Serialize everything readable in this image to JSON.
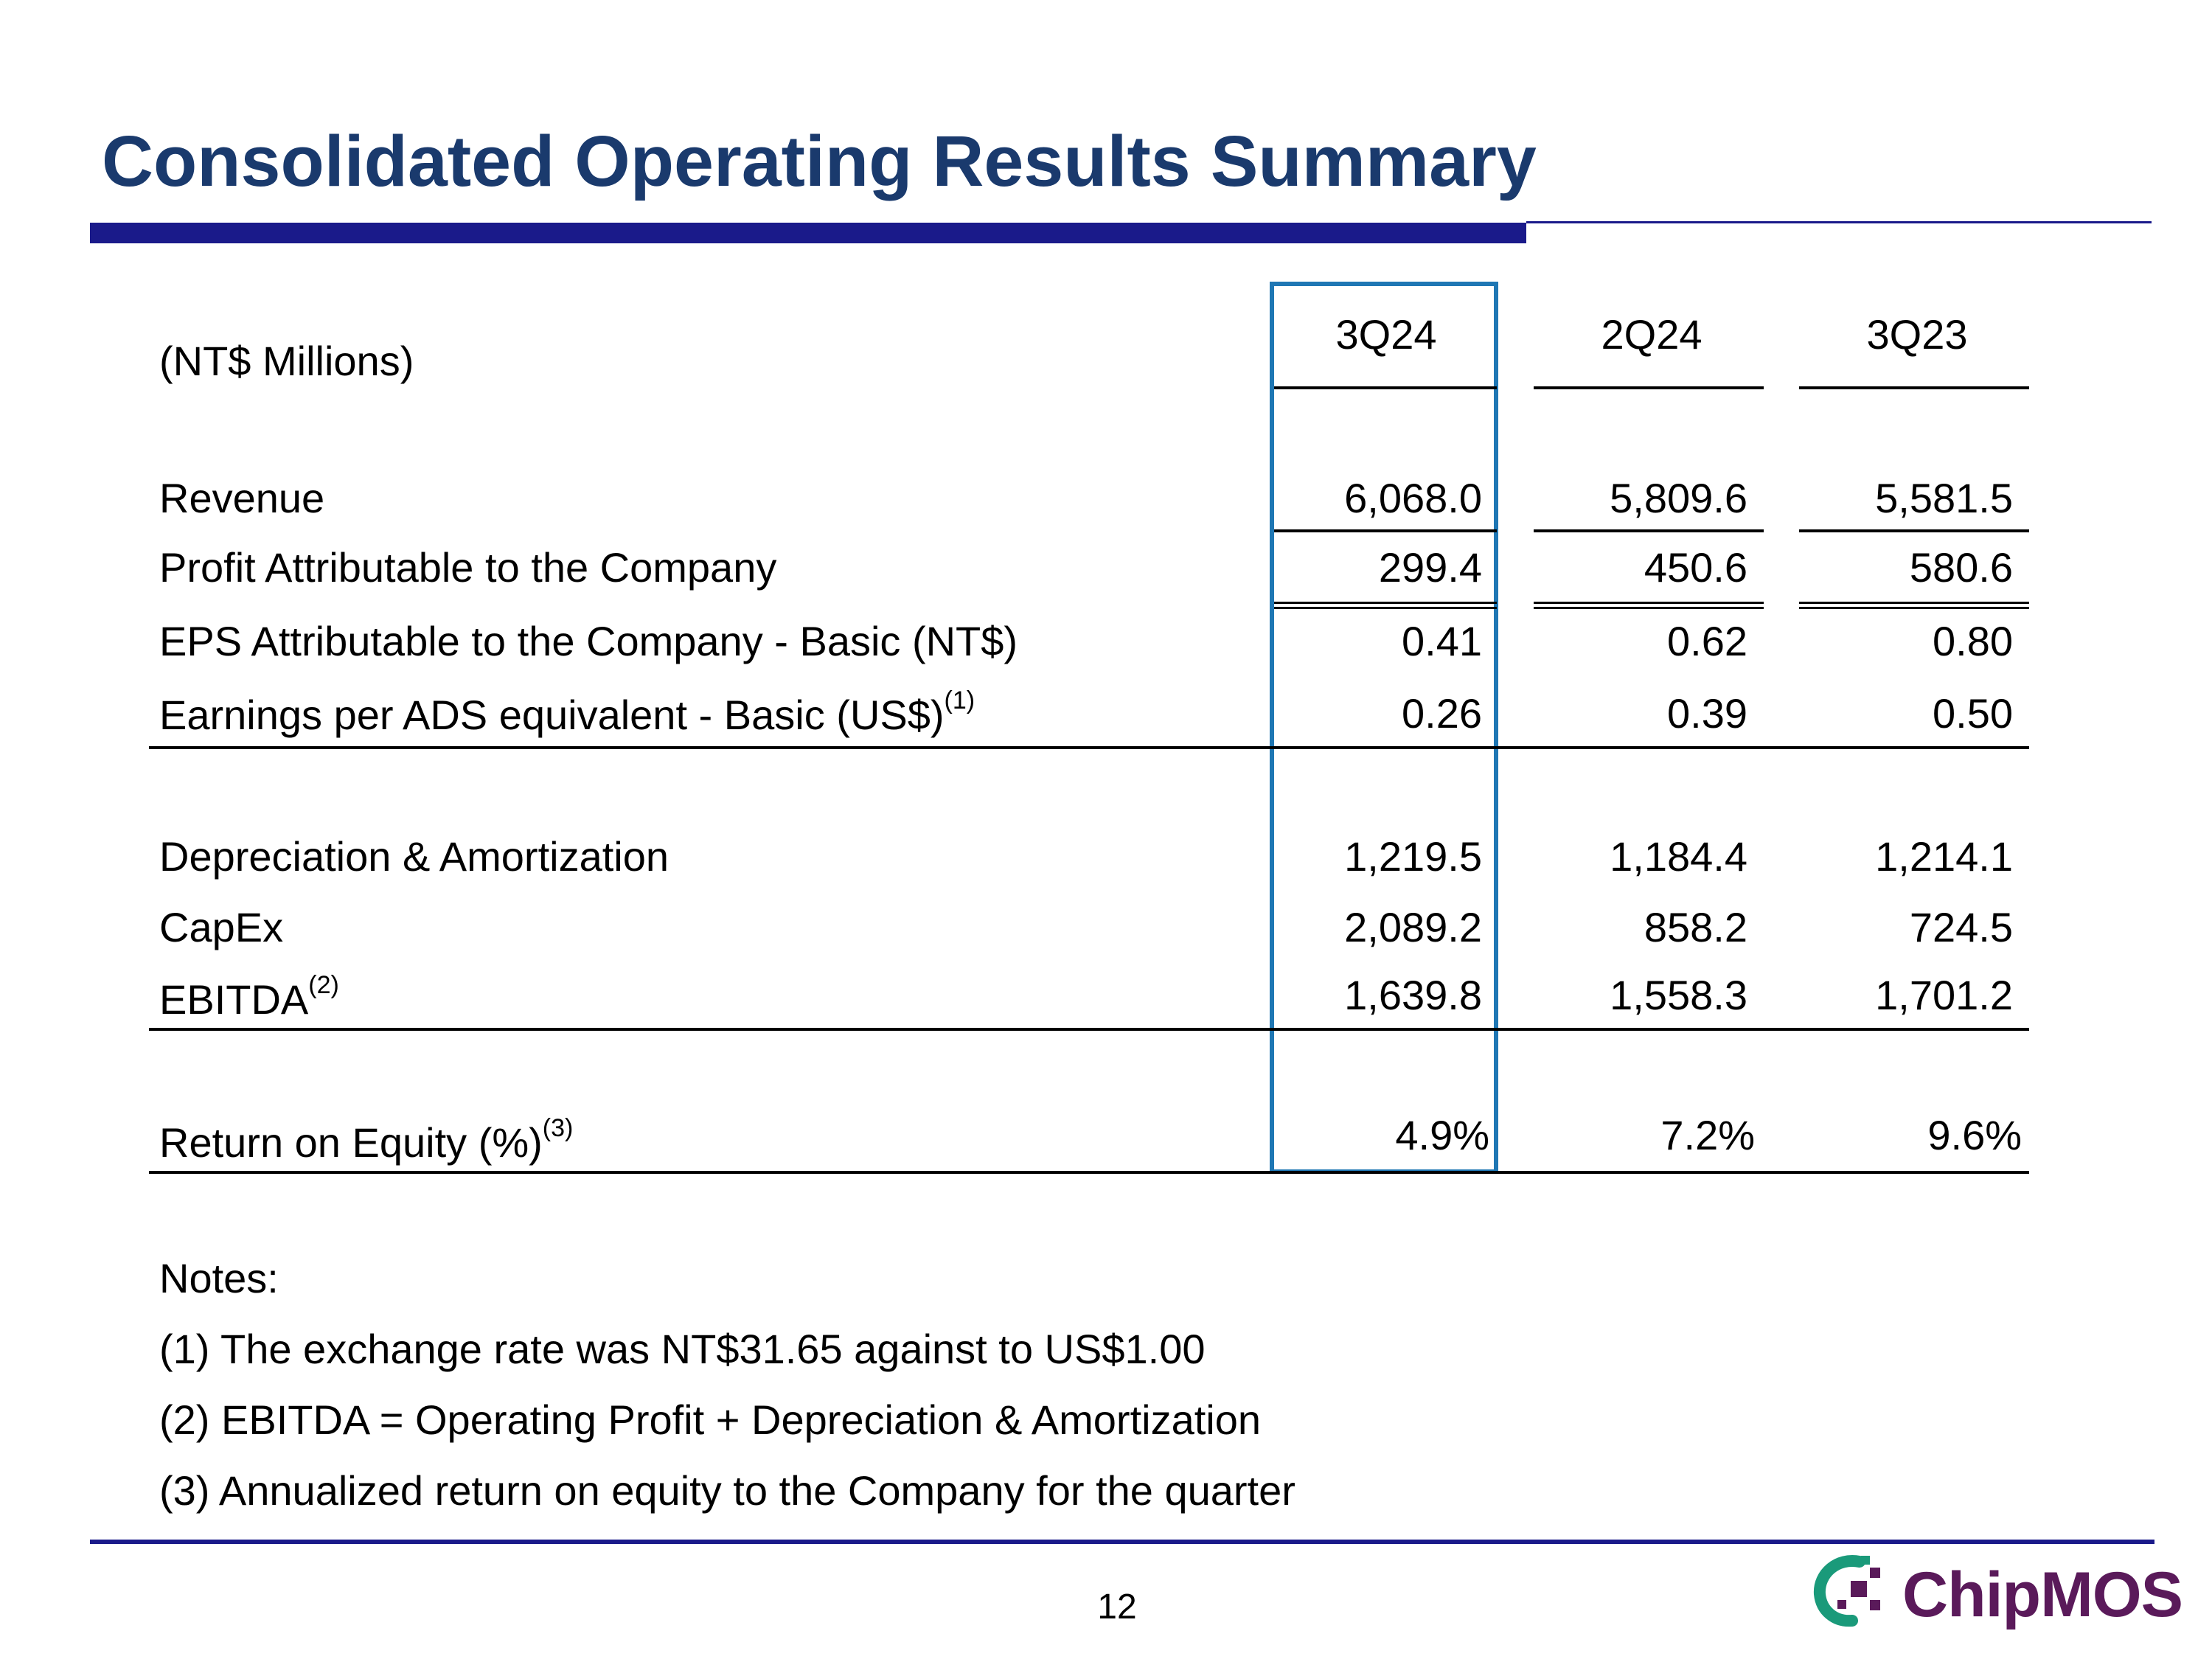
{
  "slide": {
    "title": "Consolidated Operating Results Summary",
    "page_number": "12",
    "brand": "ChipMOS"
  },
  "table": {
    "unit_label": "(NT$ Millions)",
    "columns": [
      "3Q24",
      "2Q24",
      "3Q23"
    ],
    "rows": [
      {
        "label": "Revenue",
        "footnote": "",
        "values": [
          "6,068.0",
          "5,809.6",
          "5,581.5"
        ]
      },
      {
        "label": "Profit Attributable to the Company",
        "footnote": "",
        "values": [
          "299.4",
          "450.6",
          "580.6"
        ]
      },
      {
        "label": "EPS Attributable to the Company - Basic (NT$)",
        "footnote": "",
        "values": [
          "0.41",
          "0.62",
          "0.80"
        ]
      },
      {
        "label": "Earnings per ADS equivalent - Basic (US$)",
        "footnote": "(1)",
        "values": [
          "0.26",
          "0.39",
          "0.50"
        ]
      },
      {
        "label": "Depreciation & Amortization",
        "footnote": "",
        "values": [
          "1,219.5",
          "1,184.4",
          "1,214.1"
        ]
      },
      {
        "label": "CapEx",
        "footnote": "",
        "values": [
          "2,089.2",
          "858.2",
          "724.5"
        ]
      },
      {
        "label": "EBITDA",
        "footnote": "(2)",
        "values": [
          "1,639.8",
          "1,558.3",
          "1,701.2"
        ]
      },
      {
        "label": "Return on Equity (%)",
        "footnote": "(3)",
        "values": [
          "4.9%",
          "7.2%",
          "9.6%"
        ]
      }
    ]
  },
  "notes": {
    "heading": "Notes:",
    "items": [
      "(1) The exchange rate was NT$31.65 against to US$1.00",
      "(2) EBITDA = Operating Profit + Depreciation & Amortization",
      "(3) Annualized return on equity to the Company for the quarter"
    ]
  },
  "colors": {
    "title": "#1a3a6d",
    "rule": "#1a1a8a",
    "highlight": "#1f77b4",
    "logo_mark_green": "#1a9a7a",
    "logo_mark_purple": "#5a1a5a"
  }
}
